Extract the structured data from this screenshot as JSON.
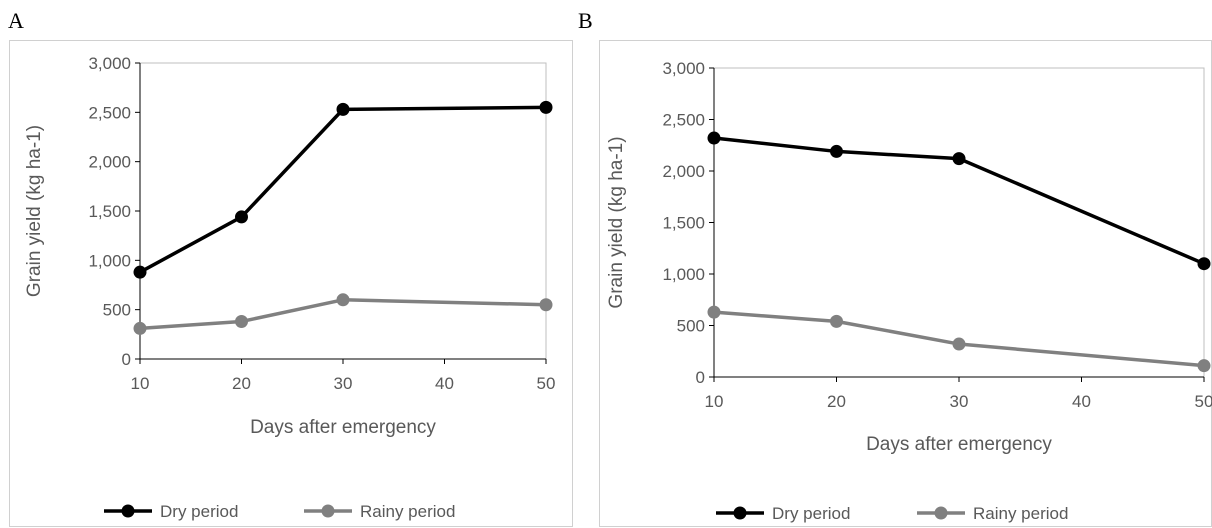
{
  "panels": [
    {
      "letter": "A"
    },
    {
      "letter": "B"
    }
  ],
  "colors": {
    "dry": "#000000",
    "rainy": "#808080",
    "axis": "#595959",
    "frame": "#d0d0d0"
  },
  "chart_data": [
    {
      "type": "line",
      "panel": "A",
      "xlabel": "Days after emergency",
      "ylabel": "Grain yield (kg ha-1)",
      "x_ticks": [
        "10",
        "20",
        "30",
        "40",
        "50"
      ],
      "y_ticks": [
        "0",
        "500",
        "1,000",
        "1,500",
        "2,000",
        "2,500",
        "3,000"
      ],
      "xlim": [
        10,
        50
      ],
      "ylim": [
        0,
        3000
      ],
      "legend_position": "bottom",
      "series": [
        {
          "name": "Dry period",
          "color": "#000000",
          "x": [
            10,
            20,
            30,
            50
          ],
          "y": [
            880,
            1440,
            2530,
            2550
          ]
        },
        {
          "name": "Rainy period",
          "color": "#808080",
          "x": [
            10,
            20,
            30,
            50
          ],
          "y": [
            310,
            380,
            600,
            550
          ]
        }
      ]
    },
    {
      "type": "line",
      "panel": "B",
      "xlabel": "Days after emergency",
      "ylabel": "Grain yield (kg ha-1)",
      "x_ticks": [
        "10",
        "20",
        "30",
        "40",
        "50"
      ],
      "y_ticks": [
        "0",
        "500",
        "1,000",
        "1,500",
        "2,000",
        "2,500",
        "3,000"
      ],
      "xlim": [
        10,
        50
      ],
      "ylim": [
        0,
        3000
      ],
      "legend_position": "bottom",
      "series": [
        {
          "name": "Dry period",
          "color": "#000000",
          "x": [
            10,
            20,
            30,
            50
          ],
          "y": [
            2320,
            2190,
            2120,
            1100
          ]
        },
        {
          "name": "Rainy period",
          "color": "#808080",
          "x": [
            10,
            20,
            30,
            50
          ],
          "y": [
            630,
            540,
            320,
            110
          ]
        }
      ]
    }
  ]
}
